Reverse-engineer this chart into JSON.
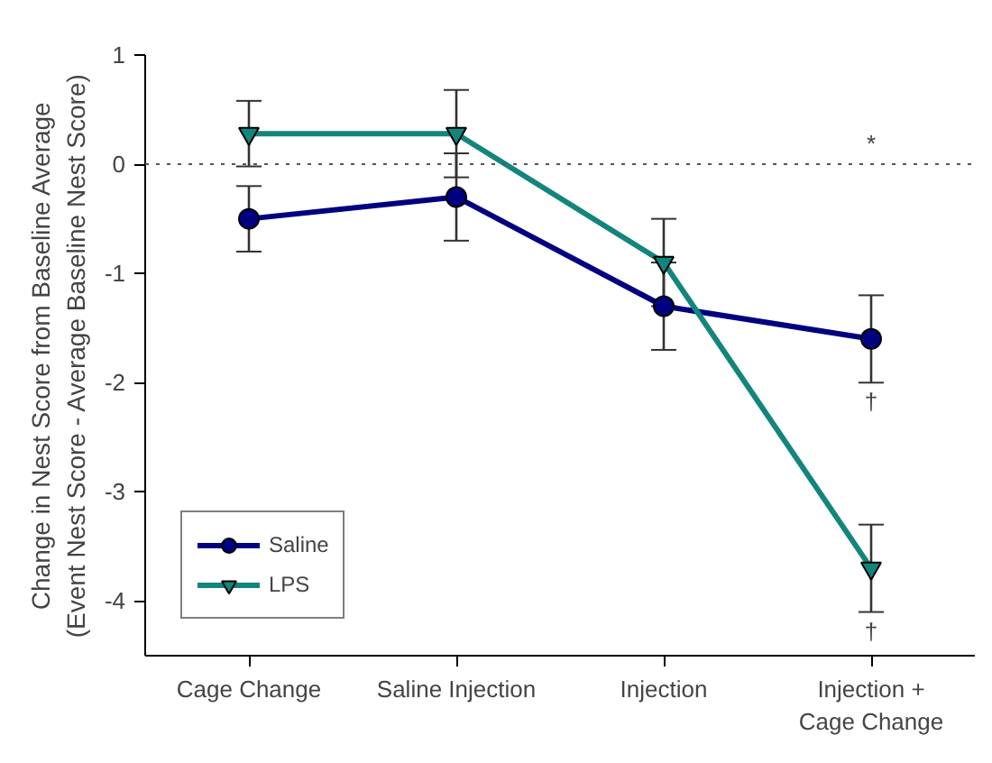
{
  "chart_data": {
    "type": "line",
    "ylabel": "Change in Nest Score from Baseline Average\n(Event Nest Score - Average Baseline Nest Score)",
    "categories": [
      "Cage Change",
      "Saline Injection",
      "Injection",
      "Injection +\nCage Change"
    ],
    "series": [
      {
        "name": "Saline",
        "color": "#000080",
        "marker": "circle",
        "values": [
          -0.5,
          -0.3,
          -1.3,
          -1.6
        ],
        "errors": [
          0.3,
          0.4,
          0.4,
          0.4
        ]
      },
      {
        "name": "LPS",
        "color": "#12857c",
        "marker": "triangle",
        "values": [
          0.28,
          0.28,
          -0.9,
          -3.7
        ],
        "errors": [
          0.3,
          0.4,
          0.4,
          0.4
        ]
      }
    ],
    "ylim": [
      -4.5,
      1
    ],
    "yticks": [
      1,
      0,
      -1,
      -2,
      -3,
      -4
    ],
    "ref_lines": [
      {
        "axis": "y",
        "value": 0,
        "line_style": "dotted",
        "color": "#555555"
      }
    ],
    "annotations": [
      "*",
      "†",
      "†"
    ],
    "legend": "bottom left",
    "grid": false,
    "line_style": "solid"
  }
}
